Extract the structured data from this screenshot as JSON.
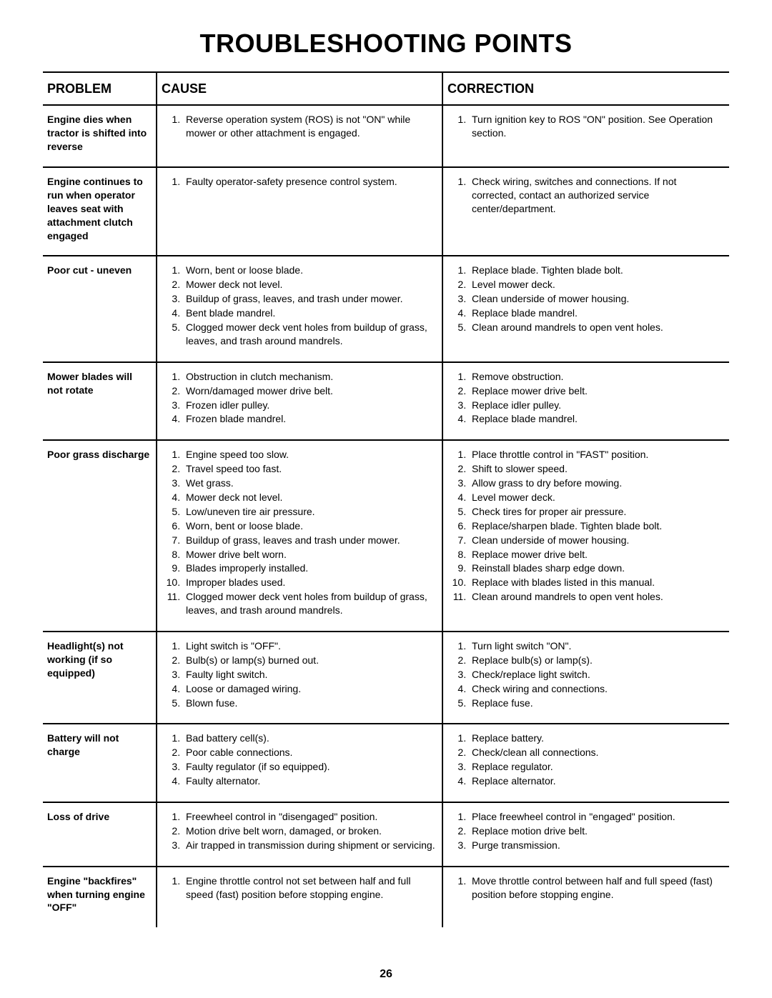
{
  "title": "TROUBLESHOOTING POINTS",
  "pagenum": "26",
  "headers": {
    "problem": "PROBLEM",
    "cause": "CAUSE",
    "correction": "CORRECTION"
  },
  "rows": [
    {
      "problem": "Engine dies when tractor is shifted into reverse",
      "causes": [
        "Reverse operation system (ROS) is not \"ON\" while mower or other attachment is engaged."
      ],
      "corrections": [
        "Turn ignition key to ROS \"ON\" position. See Operation section."
      ]
    },
    {
      "problem": "Engine continues to run when operator leaves seat with attachment clutch engaged",
      "causes": [
        "Faulty operator-safety presence control system."
      ],
      "corrections": [
        "Check wiring, switches and connections. If not corrected, contact an authorized service center/department."
      ]
    },
    {
      "problem": "Poor cut - uneven",
      "causes": [
        "Worn, bent or loose blade.",
        "Mower deck not level.",
        "Buildup of grass, leaves, and trash under mower.",
        "Bent blade mandrel.",
        "Clogged mower deck vent holes from buildup of grass, leaves, and trash around mandrels."
      ],
      "corrections": [
        "Replace blade. Tighten blade bolt.",
        "Level mower deck.",
        "Clean underside of mower housing.",
        "Replace blade mandrel.",
        "Clean around mandrels to open vent holes."
      ]
    },
    {
      "problem": "Mower blades will not rotate",
      "causes": [
        "Obstruction in clutch mechanism.",
        "Worn/damaged mower drive belt.",
        "Frozen idler pulley.",
        "Frozen blade mandrel."
      ],
      "corrections": [
        "Remove obstruction.",
        "Replace mower drive belt.",
        "Replace idler pulley.",
        "Replace blade mandrel."
      ]
    },
    {
      "problem": "Poor grass discharge",
      "causes": [
        "Engine speed too slow.",
        "Travel speed too fast.",
        "Wet grass.",
        "Mower deck not level.",
        "Low/uneven tire air pressure.",
        "Worn, bent or loose blade.",
        "Buildup of grass, leaves and trash under mower.",
        "Mower drive belt worn.",
        "Blades improperly installed.",
        "Improper blades used.",
        "Clogged mower deck vent holes from buildup of grass, leaves, and trash around mandrels."
      ],
      "corrections": [
        "Place throttle control in \"FAST\" position.",
        "Shift to slower speed.",
        "Allow grass to dry before mowing.",
        "Level mower deck.",
        "Check tires for proper air pressure.",
        "Replace/sharpen blade. Tighten blade bolt.",
        "Clean underside of mower housing.",
        "Replace mower drive belt.",
        "Reinstall blades sharp edge down.",
        "Replace with blades listed in this manual.",
        "Clean around mandrels to open vent holes."
      ]
    },
    {
      "problem": "Headlight(s) not working (if so equipped)",
      "causes": [
        "Light switch is \"OFF\".",
        "Bulb(s) or lamp(s) burned out.",
        "Faulty light switch.",
        "Loose or damaged wiring.",
        "Blown fuse."
      ],
      "corrections": [
        "Turn light switch \"ON\".",
        "Replace bulb(s) or lamp(s).",
        "Check/replace light switch.",
        "Check wiring and connections.",
        "Replace fuse."
      ]
    },
    {
      "problem": "Battery will not charge",
      "causes": [
        "Bad battery cell(s).",
        "Poor cable connections.",
        "Faulty regulator (if so equipped).",
        "Faulty alternator."
      ],
      "corrections": [
        "Replace battery.",
        "Check/clean all connections.",
        "Replace regulator.",
        "Replace alternator."
      ]
    },
    {
      "problem": "Loss of drive",
      "causes": [
        "Freewheel control in \"disengaged\" position.",
        "Motion drive belt worn, damaged, or broken.",
        "Air trapped in transmission during shipment or servicing."
      ],
      "corrections": [
        "Place freewheel control in \"engaged\" position.",
        "Replace motion drive belt.",
        "Purge transmission."
      ]
    },
    {
      "problem": "Engine \"backfires\" when turning engine \"OFF\"",
      "causes": [
        "Engine throttle control not set between half and full speed (fast) position before stopping engine."
      ],
      "corrections": [
        "Move throttle control between half and full speed (fast) position before stopping engine."
      ]
    }
  ]
}
